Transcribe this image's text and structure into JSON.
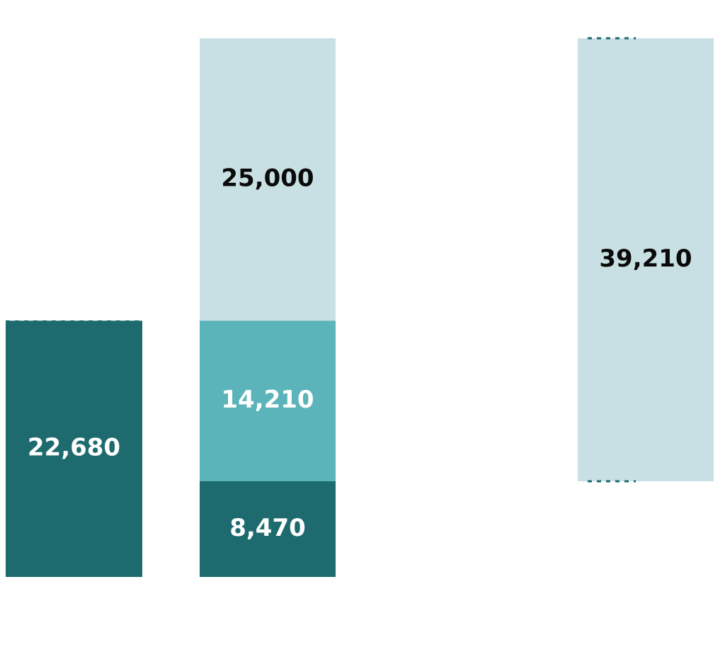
{
  "chart_data": {
    "type": "bar",
    "stacked": true,
    "categories": [
      "",
      "",
      "",
      ""
    ],
    "ylim": [
      0,
      47680
    ],
    "grid": false,
    "legend": "none",
    "series": [
      {
        "values": [
          22680,
          8470,
          null,
          null
        ],
        "color": "#1e6b6f",
        "label_color": "#ffffff"
      },
      {
        "values": [
          null,
          14210,
          null,
          null
        ],
        "color": "#5bb4ba",
        "label_color": "#ffffff"
      },
      {
        "values": [
          null,
          25000,
          null,
          39210
        ],
        "color": "#c8e0e3",
        "label_color": "#0a0a0a"
      }
    ],
    "value_labels": {
      "col1": "22,680",
      "col2_bottom": "8,470",
      "col2_mid": "14,210",
      "col2_top": "25,000",
      "col4": "39,210"
    }
  }
}
